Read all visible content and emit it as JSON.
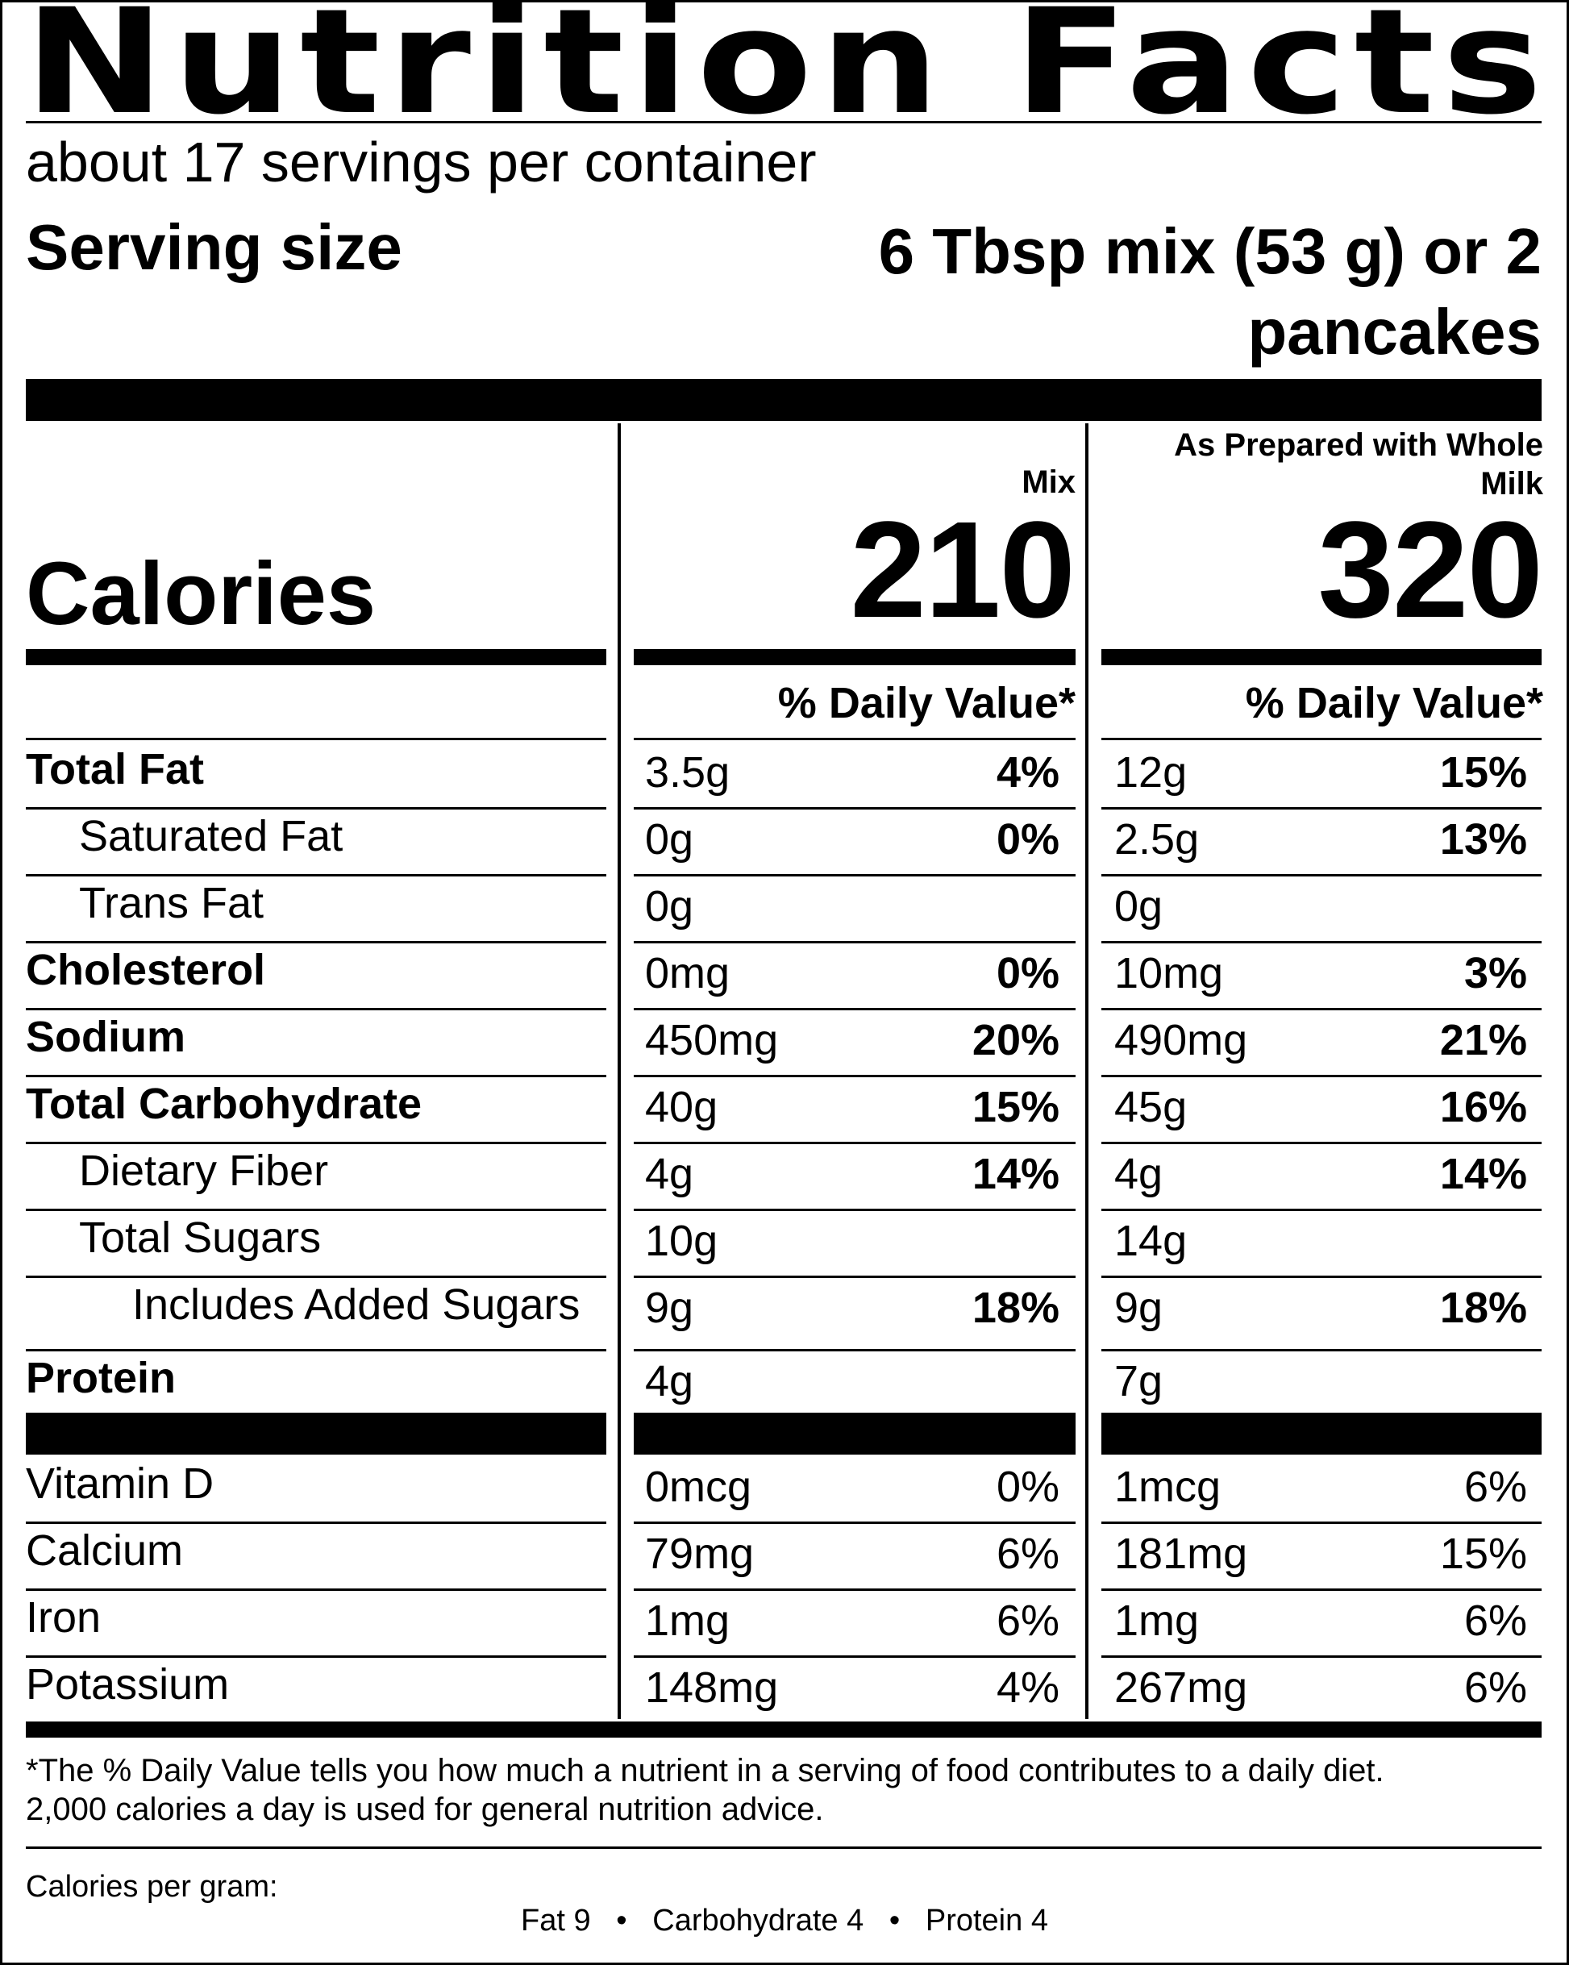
{
  "title": "Nutrition Facts",
  "servings_per_container": "about 17 servings per container",
  "serving_size": {
    "label": "Serving size",
    "value_line1": "6 Tbsp mix (53 g) or 2",
    "value_line2": "pancakes"
  },
  "columns": {
    "mix": {
      "header": "Mix",
      "calories": "210",
      "dv_header": "% Daily Value*"
    },
    "prepared": {
      "header_line1": "As Prepared with Whole",
      "header_line2": "Milk",
      "calories": "320",
      "dv_header": "% Daily Value*"
    }
  },
  "calories_label": "Calories",
  "nutrients": [
    {
      "name": "Total Fat",
      "mix_amount": "3.5g",
      "mix_dv": "4%",
      "prep_amount": "12g",
      "prep_dv": "15%"
    },
    {
      "name": "Saturated Fat",
      "mix_amount": "0g",
      "mix_dv": "0%",
      "prep_amount": "2.5g",
      "prep_dv": "13%"
    },
    {
      "name": "Trans Fat",
      "mix_amount": "0g",
      "mix_dv": "",
      "prep_amount": "0g",
      "prep_dv": ""
    },
    {
      "name": "Cholesterol",
      "mix_amount": "0mg",
      "mix_dv": "0%",
      "prep_amount": "10mg",
      "prep_dv": "3%"
    },
    {
      "name": "Sodium",
      "mix_amount": "450mg",
      "mix_dv": "20%",
      "prep_amount": "490mg",
      "prep_dv": "21%"
    },
    {
      "name": "Total Carbohydrate",
      "mix_amount": "40g",
      "mix_dv": "15%",
      "prep_amount": "45g",
      "prep_dv": "16%"
    },
    {
      "name": "Dietary Fiber",
      "mix_amount": "4g",
      "mix_dv": "14%",
      "prep_amount": "4g",
      "prep_dv": "14%"
    },
    {
      "name": "Total Sugars",
      "mix_amount": "10g",
      "mix_dv": "",
      "prep_amount": "14g",
      "prep_dv": ""
    },
    {
      "name": "Includes Added Sugars",
      "mix_amount": "9g",
      "mix_dv": "18%",
      "prep_amount": "9g",
      "prep_dv": "18%"
    },
    {
      "name": "Protein",
      "mix_amount": "4g",
      "mix_dv": "",
      "prep_amount": "7g",
      "prep_dv": ""
    }
  ],
  "vitamins": [
    {
      "name": "Vitamin D",
      "mix_amount": "0mcg",
      "mix_dv": "0%",
      "prep_amount": "1mcg",
      "prep_dv": "6%"
    },
    {
      "name": "Calcium",
      "mix_amount": "79mg",
      "mix_dv": "6%",
      "prep_amount": "181mg",
      "prep_dv": "15%"
    },
    {
      "name": "Iron",
      "mix_amount": "1mg",
      "mix_dv": "6%",
      "prep_amount": "1mg",
      "prep_dv": "6%"
    },
    {
      "name": "Potassium",
      "mix_amount": "148mg",
      "mix_dv": "4%",
      "prep_amount": "267mg",
      "prep_dv": "6%"
    }
  ],
  "footnote_line1": "*The % Daily Value tells you how much a nutrient in a serving of food contributes to a daily diet.",
  "footnote_line2": "2,000 calories a day is used for general nutrition advice.",
  "calories_per_gram_label": "Calories per gram:",
  "calories_per_gram_values": "Fat 9   •   Carbohydrate 4   •   Protein 4"
}
